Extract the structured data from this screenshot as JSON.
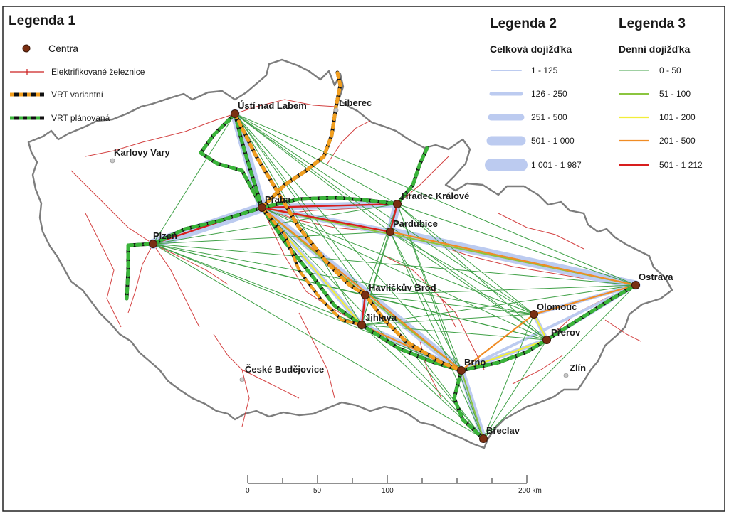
{
  "legend1": {
    "title": "Legenda 1",
    "items": [
      {
        "label": "Centra",
        "icon": "city-point-icon"
      },
      {
        "label": "Elektrifikované železnice",
        "icon": "railway-line-icon"
      },
      {
        "label": "VRT variantní",
        "icon": "hsr-variant-line-icon"
      },
      {
        "label": "VRT plánovaná",
        "icon": "hsr-planned-line-icon"
      }
    ]
  },
  "legend2": {
    "title": "Legenda 2",
    "subtitle": "Celková dojížďka",
    "classes": [
      "1 - 125",
      "126 - 250",
      "251 - 500",
      "501 - 1 000",
      "1 001 - 1 987"
    ]
  },
  "legend3": {
    "title": "Legenda 3",
    "subtitle": "Denní dojížďka",
    "classes": [
      "0 - 50",
      "51 - 100",
      "101 - 200",
      "201 - 500",
      "501 - 1 212"
    ]
  },
  "cities": {
    "centres": [
      "Ústí nad Labem",
      "Praha",
      "Hradec Králové",
      "Pardubice",
      "Plzeň",
      "Havlíčkův Brod",
      "Jihlava",
      "Olomouc",
      "Přerov",
      "Ostrava",
      "Brno",
      "Břeclav"
    ],
    "others": [
      "Liberec",
      "Karlovy Vary",
      "České Budějovice",
      "Zlín"
    ]
  },
  "scale": {
    "ticks": [
      "0",
      "50",
      "100",
      "200 km"
    ]
  },
  "colors": {
    "centre_point": "#7a2f12",
    "railway": "#cc1f1f",
    "border": "#7a7a7a",
    "total_commute": "#b8c9ef",
    "daily_0_50": "#3fa046",
    "daily_51_100": "#8bc53f",
    "daily_101_200": "#f2ee3a",
    "daily_201_500": "#f08c24",
    "daily_501_1212": "#d81e1e",
    "hsr_variant": "#f29f1f",
    "hsr_planned": "#3ab53a"
  }
}
